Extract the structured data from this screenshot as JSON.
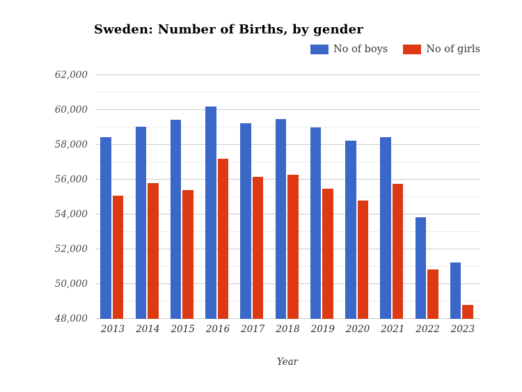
{
  "chart_data": {
    "type": "bar",
    "title": "Sweden: Number of Births, by gender",
    "xlabel": "Year",
    "ylabel": "",
    "categories": [
      "2013",
      "2014",
      "2015",
      "2016",
      "2017",
      "2018",
      "2019",
      "2020",
      "2021",
      "2022",
      "2023"
    ],
    "series": [
      {
        "key": "boys",
        "name": "No of boys",
        "color": "#3a67c8",
        "values": [
          58450,
          59050,
          59450,
          60200,
          59250,
          59500,
          59000,
          58250,
          58450,
          53850,
          51250
        ]
      },
      {
        "key": "girls",
        "name": "No of girls",
        "color": "#dd3912",
        "values": [
          55100,
          55800,
          55400,
          57200,
          56150,
          56300,
          55500,
          54800,
          55750,
          50850,
          48800
        ]
      }
    ],
    "ylim": [
      48000,
      62000
    ],
    "y_major_step": 2000,
    "y_minor_step": 1000,
    "y_tick_values": [
      48000,
      50000,
      52000,
      54000,
      56000,
      58000,
      60000,
      62000
    ],
    "y_tick_labels": [
      "48,000",
      "50,000",
      "52,000",
      "54,000",
      "56,000",
      "58,000",
      "60,000",
      "62,000"
    ],
    "grid": true,
    "legend_position": "top-right"
  },
  "colors": {
    "background": "#ffffff",
    "major_gridline": "#cccccc",
    "minor_gridline": "#ebebeb",
    "title_text": "#000000",
    "tick_text": "#484848",
    "x_tick_text": "#2b2b2b"
  }
}
